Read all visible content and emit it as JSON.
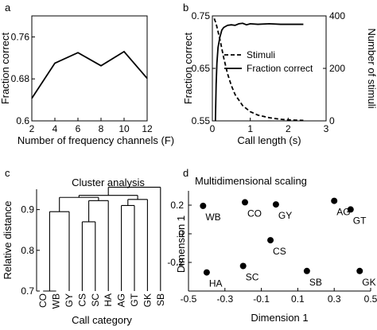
{
  "chart_data": [
    {
      "panel": "a",
      "type": "line",
      "panel_label": "a",
      "xlabel": "Number of frequency channels (F)",
      "ylabel": "Fraction correct",
      "xlim": [
        2,
        12
      ],
      "ylim": [
        0.6,
        0.8
      ],
      "xticks": [
        "2",
        "4",
        "6",
        "8",
        "10",
        "12"
      ],
      "yticks": [
        "0.6",
        "0.68",
        "0.76"
      ],
      "ytick_values": [
        0.6,
        0.68,
        0.76
      ],
      "x": [
        2,
        4,
        6,
        8,
        10,
        12
      ],
      "y": [
        0.643,
        0.71,
        0.73,
        0.705,
        0.732,
        0.681
      ]
    },
    {
      "panel": "b",
      "type": "line",
      "panel_label": "b",
      "xlabel": "Call length (s)",
      "ylabel": "Fraction correct",
      "ylabel_right": "Number of stimuli",
      "xlim": [
        0,
        3
      ],
      "ylim": [
        0.55,
        0.75
      ],
      "ylim_right": [
        0,
        400
      ],
      "xticks": [
        "0",
        "1",
        "2",
        "3"
      ],
      "yticks": [
        "0.55",
        "0.65",
        "0.75"
      ],
      "ytick_values": [
        0.55,
        0.65,
        0.75
      ],
      "yticks_right": [
        "0",
        "200",
        "400"
      ],
      "ytick_values_right": [
        0,
        200,
        400
      ],
      "legend": {
        "position": "right",
        "entries": [
          "Stimuli",
          "Fraction correct"
        ]
      },
      "series": [
        {
          "name": "Stimuli",
          "style": "dashed",
          "axis": "right",
          "x": [
            0.05,
            0.1,
            0.2,
            0.3,
            0.4,
            0.5,
            0.6,
            0.8,
            1.0,
            1.2,
            1.5,
            1.8,
            2.1,
            2.4
          ],
          "values": [
            390,
            370,
            310,
            240,
            180,
            135,
            100,
            58,
            35,
            22,
            12,
            6,
            3,
            2
          ]
        },
        {
          "name": "Fraction correct",
          "style": "solid",
          "axis": "left",
          "x": [
            0.08,
            0.1,
            0.12,
            0.15,
            0.2,
            0.25,
            0.3,
            0.4,
            0.5,
            0.6,
            0.7,
            0.8,
            0.9,
            1.0,
            1.2,
            1.5,
            1.8,
            2.1,
            2.4
          ],
          "values": [
            0.55,
            0.62,
            0.66,
            0.69,
            0.71,
            0.723,
            0.728,
            0.732,
            0.733,
            0.732,
            0.735,
            0.736,
            0.733,
            0.735,
            0.734,
            0.735,
            0.734,
            0.734,
            0.734
          ]
        }
      ]
    },
    {
      "panel": "c",
      "type": "dendrogram",
      "panel_label": "c",
      "title": "Cluster analysis",
      "xlabel": "Call category",
      "ylabel": "Relative distance",
      "ylim": [
        0.7,
        0.95
      ],
      "yticks": [
        "0.7",
        "0.8",
        "0.9"
      ],
      "ytick_values": [
        0.7,
        0.8,
        0.9
      ],
      "leaves": [
        "CO",
        "WB",
        "GY",
        "CS",
        "SC",
        "HA",
        "AG",
        "GT",
        "GK",
        "SB"
      ],
      "merges": [
        {
          "left": 0,
          "right": 1,
          "height": 0.7
        },
        {
          "left": 3,
          "right": 4,
          "height": 0.87
        },
        {
          "left": 6,
          "right": 7,
          "height": 0.91
        },
        {
          "left": 10,
          "right": 2,
          "height": 0.895
        },
        {
          "left": 11,
          "right": 5,
          "height": 0.922
        },
        {
          "left": 12,
          "right": 8,
          "height": 0.925
        },
        {
          "left": 13,
          "right": 14,
          "height": 0.93
        },
        {
          "left": 15,
          "right": 16,
          "height": 0.935
        },
        {
          "left": 17,
          "right": 9,
          "height": 0.955
        }
      ]
    },
    {
      "panel": "d",
      "type": "scatter",
      "panel_label": "d",
      "title": "Multidimensional scaling",
      "xlabel": "Dimension 1",
      "ylabel": "Dimension 1",
      "xlim": [
        -0.5,
        0.5
      ],
      "ylim": [
        -0.4,
        0.3
      ],
      "xticks": [
        "-0.5",
        "-0.3",
        "-0.1",
        "0.1",
        "0.3",
        "0.5"
      ],
      "xtick_values": [
        -0.5,
        -0.3,
        -0.1,
        0.1,
        0.3,
        0.5
      ],
      "yticks": [
        "0.2",
        "0",
        "-0.2"
      ],
      "ytick_values": [
        0.2,
        0,
        -0.2
      ],
      "points": [
        {
          "label": "WB",
          "x": -0.42,
          "y": 0.195
        },
        {
          "label": "CO",
          "x": -0.19,
          "y": 0.22
        },
        {
          "label": "GY",
          "x": -0.02,
          "y": 0.205
        },
        {
          "label": "AG",
          "x": 0.3,
          "y": 0.23
        },
        {
          "label": "GT",
          "x": 0.39,
          "y": 0.17
        },
        {
          "label": "CS",
          "x": -0.05,
          "y": -0.045
        },
        {
          "label": "SC",
          "x": -0.2,
          "y": -0.225
        },
        {
          "label": "HA",
          "x": -0.4,
          "y": -0.27
        },
        {
          "label": "SB",
          "x": 0.15,
          "y": -0.26
        },
        {
          "label": "GK",
          "x": 0.44,
          "y": -0.26
        }
      ]
    }
  ]
}
